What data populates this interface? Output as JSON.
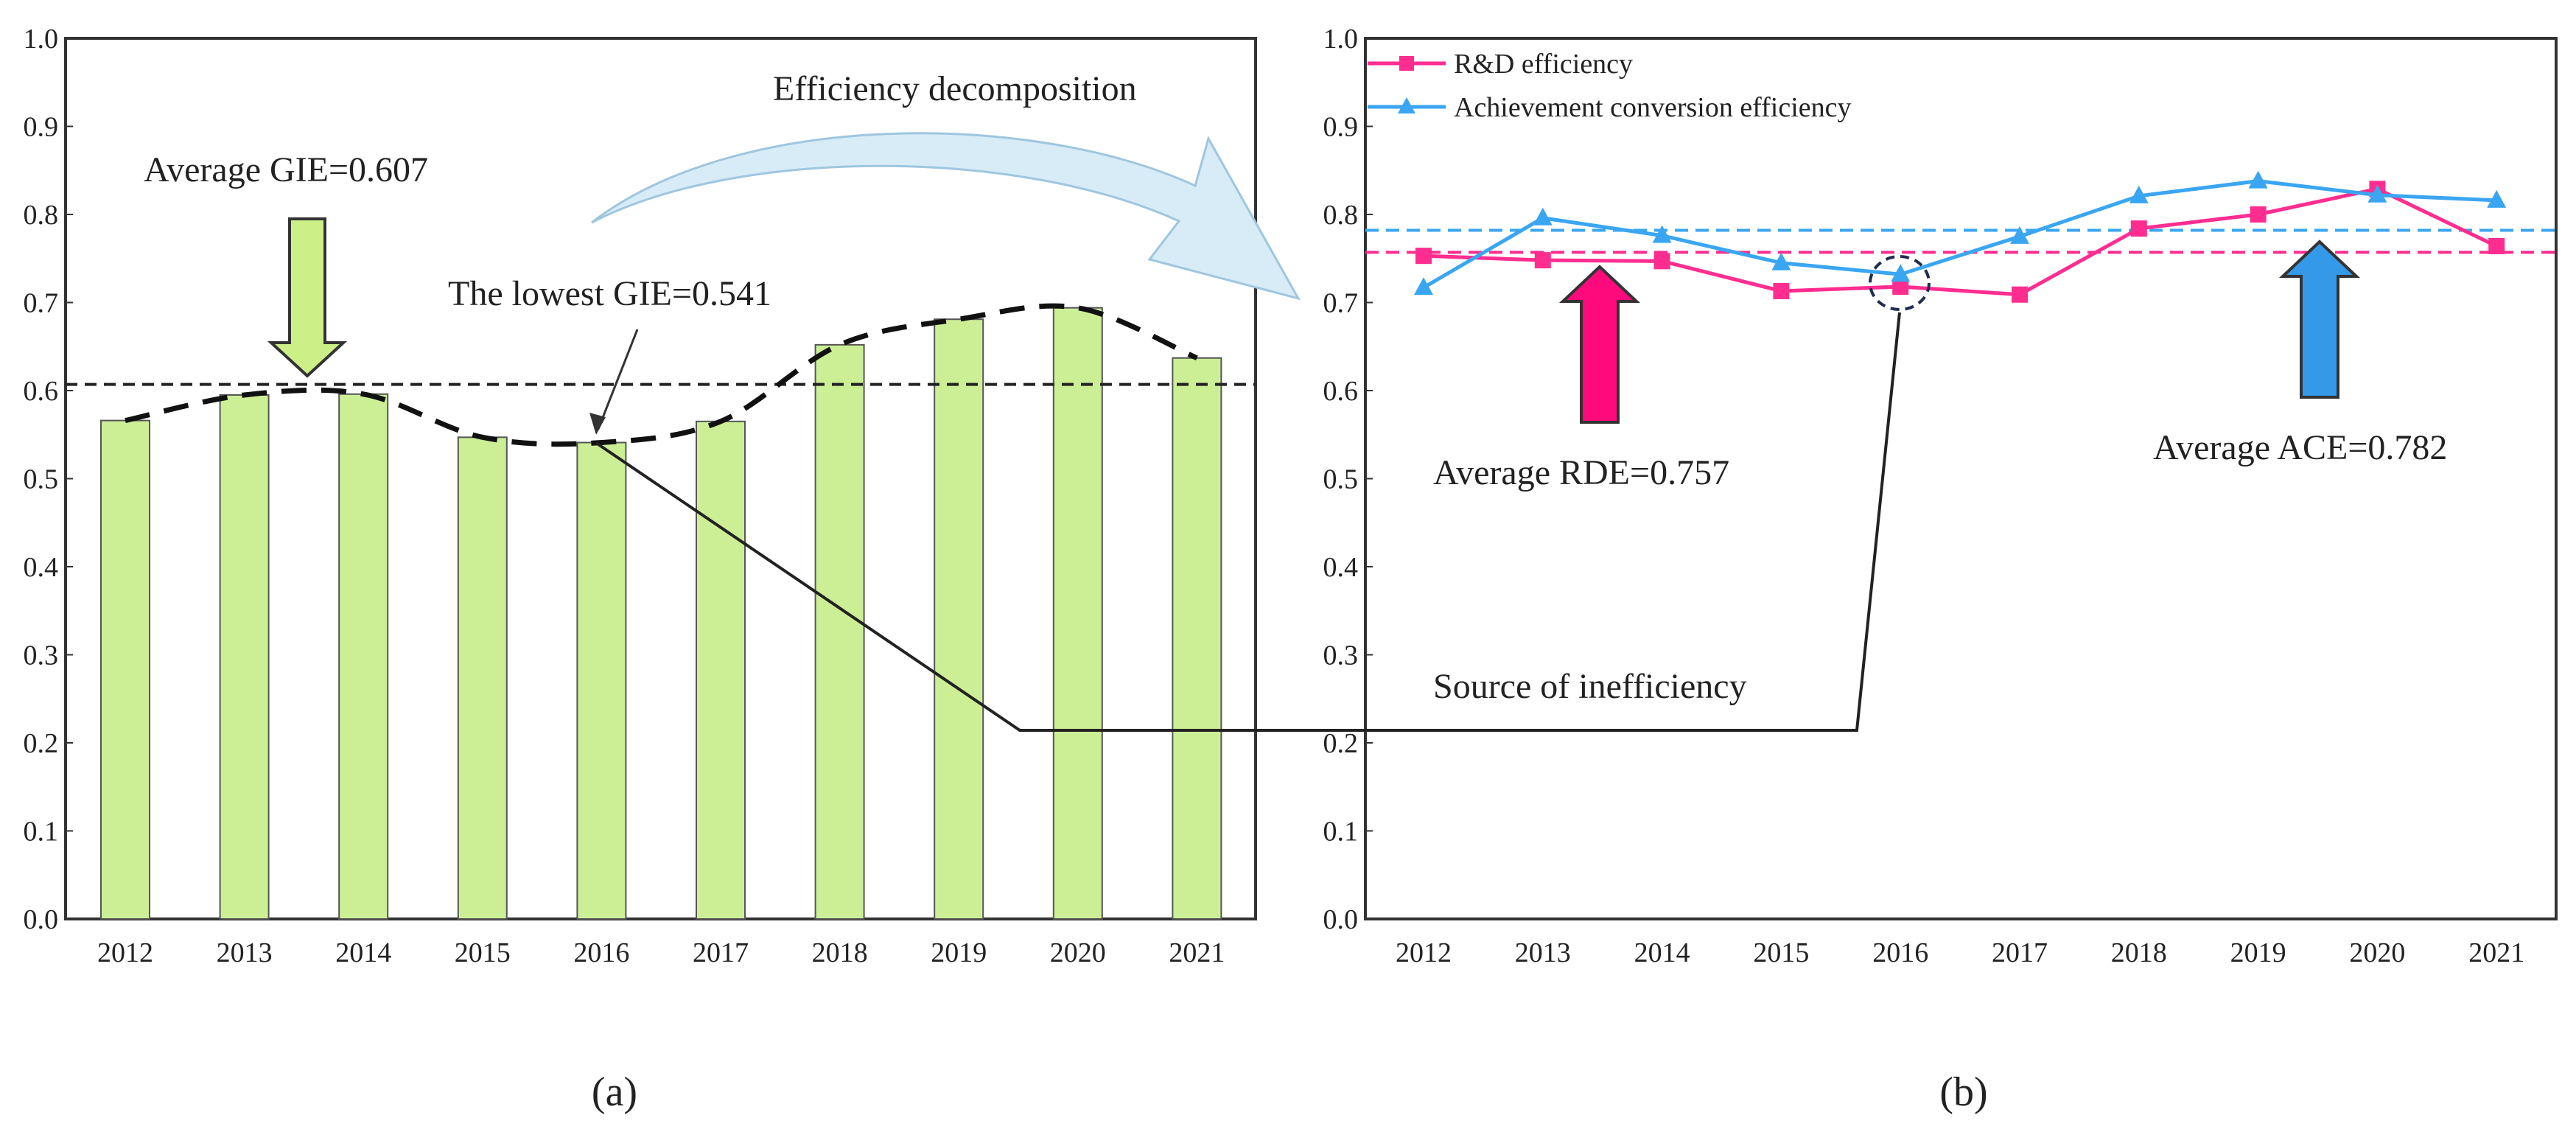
{
  "chart_data": [
    {
      "type": "bar",
      "panel": "(a)",
      "categories": [
        "2012",
        "2013",
        "2014",
        "2015",
        "2016",
        "2017",
        "2018",
        "2019",
        "2020",
        "2021"
      ],
      "values": [
        0.566,
        0.595,
        0.596,
        0.547,
        0.541,
        0.565,
        0.652,
        0.681,
        0.694,
        0.637
      ],
      "ylim": [
        0,
        1.0
      ],
      "yticks": [
        "0.0",
        "0.1",
        "0.2",
        "0.3",
        "0.4",
        "0.5",
        "0.6",
        "0.7",
        "0.8",
        "0.9",
        "1.0"
      ],
      "reference_line": 0.607,
      "bar_color": "#ccef96",
      "trend_line": "dashed",
      "annotations": {
        "average": "Average GIE=0.607",
        "lowest": "The lowest GIE=0.541",
        "decomposition": "Efficiency decomposition"
      }
    },
    {
      "type": "line",
      "panel": "(b)",
      "categories": [
        "2012",
        "2013",
        "2014",
        "2015",
        "2016",
        "2017",
        "2018",
        "2019",
        "2020",
        "2021"
      ],
      "ylim": [
        0,
        1.0
      ],
      "yticks": [
        "0.0",
        "0.1",
        "0.2",
        "0.3",
        "0.4",
        "0.5",
        "0.6",
        "0.7",
        "0.8",
        "0.9",
        "1.0"
      ],
      "legend_position": "top-left",
      "series": [
        {
          "name": "R&D efficiency",
          "color": "#ff2d8f",
          "marker": "square",
          "average": 0.757,
          "values": [
            0.753,
            0.748,
            0.747,
            0.713,
            0.718,
            0.709,
            0.784,
            0.8,
            0.829,
            0.764
          ]
        },
        {
          "name": "Achievement conversion efficiency",
          "color": "#3aa6f2",
          "marker": "triangle",
          "average": 0.782,
          "values": [
            0.717,
            0.796,
            0.776,
            0.745,
            0.732,
            0.775,
            0.821,
            0.838,
            0.822,
            0.816
          ]
        }
      ],
      "annotations": {
        "rde": "Average RDE=0.757",
        "ace": "Average ACE=0.782",
        "source": "Source of inefficiency"
      }
    }
  ],
  "captions": {
    "a": "(a)",
    "b": "(b)"
  }
}
